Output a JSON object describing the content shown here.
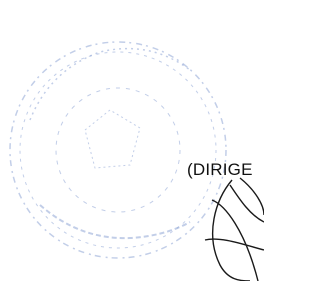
{
  "document": {
    "text": "(DIRIGE"
  }
}
